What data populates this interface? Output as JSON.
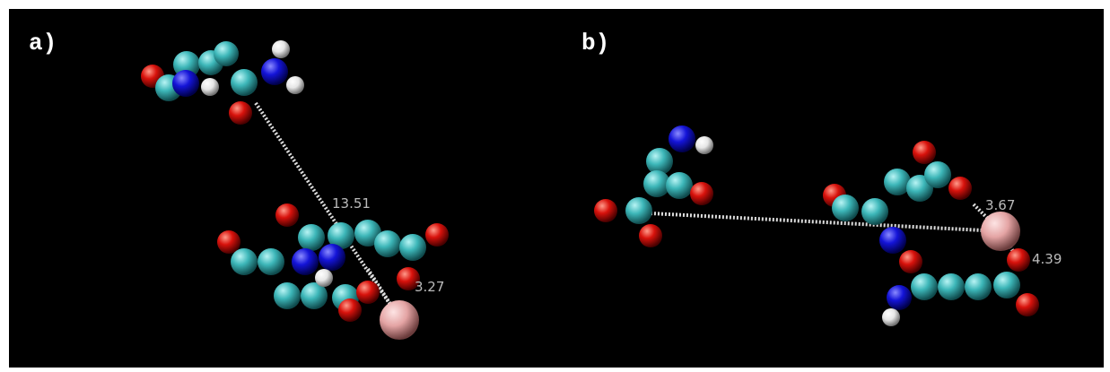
{
  "panels": [
    {
      "label": "a)",
      "distances": [
        "13.51",
        "3.27"
      ]
    },
    {
      "label": "b)",
      "distances": [
        "3.67",
        "4.39"
      ]
    }
  ]
}
